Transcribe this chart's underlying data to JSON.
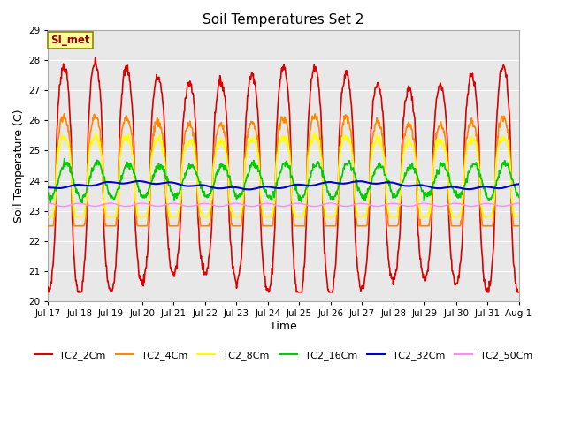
{
  "title": "Soil Temperatures Set 2",
  "xlabel": "Time",
  "ylabel": "Soil Temperature (C)",
  "ylim": [
    20.0,
    29.0
  ],
  "yticks": [
    20.0,
    21.0,
    22.0,
    23.0,
    24.0,
    25.0,
    26.0,
    27.0,
    28.0,
    29.0
  ],
  "fig_color": "#ffffff",
  "plot_bg": "#e8e8e8",
  "annotation_text": "SI_met",
  "annotation_bg": "#ffff99",
  "annotation_border": "#888800",
  "annotation_text_color": "#990000",
  "series": [
    {
      "label": "TC2_2Cm",
      "color": "#dd0000",
      "lw": 1.2
    },
    {
      "label": "TC2_4Cm",
      "color": "#ff8800",
      "lw": 1.2
    },
    {
      "label": "TC2_8Cm",
      "color": "#ffff00",
      "lw": 1.2
    },
    {
      "label": "TC2_16Cm",
      "color": "#00cc00",
      "lw": 1.2
    },
    {
      "label": "TC2_32Cm",
      "color": "#0000cc",
      "lw": 1.5
    },
    {
      "label": "TC2_50Cm",
      "color": "#ff88ff",
      "lw": 1.0
    }
  ],
  "n_points": 960,
  "x_start": 0,
  "x_end": 15.0,
  "xtick_labels": [
    "Jul 17",
    "Jul 18",
    "Jul 19",
    "Jul 20",
    "Jul 21",
    "Jul 22",
    "Jul 23",
    "Jul 24",
    "Jul 25",
    "Jul 26",
    "Jul 27",
    "Jul 28",
    "Jul 29",
    "Jul 30",
    "Jul 31",
    "Aug 1"
  ],
  "xtick_positions": [
    0,
    1,
    2,
    3,
    4,
    5,
    6,
    7,
    8,
    9,
    10,
    11,
    12,
    13,
    14,
    15
  ]
}
